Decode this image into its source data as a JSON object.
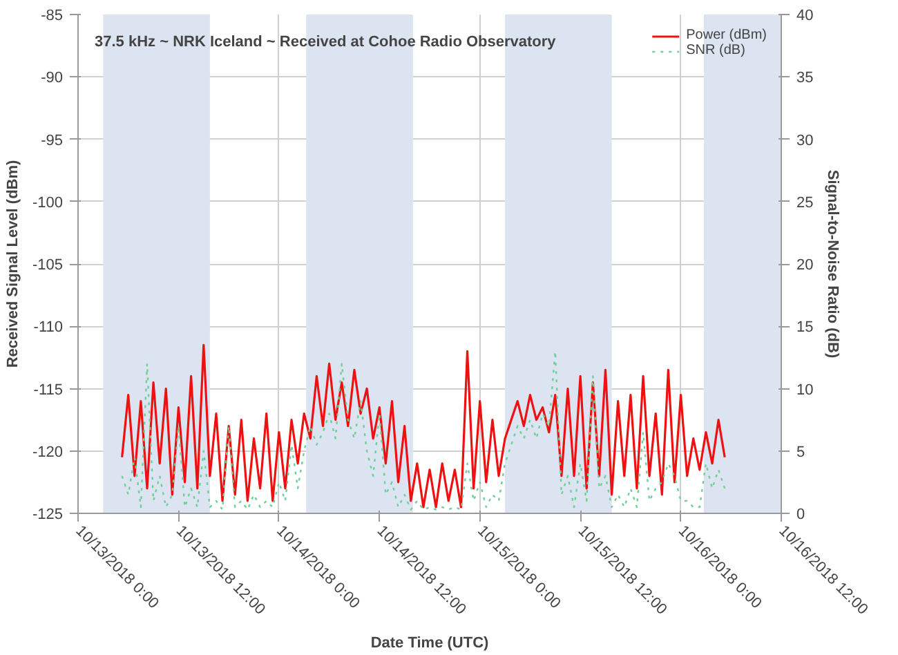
{
  "chart_data": {
    "type": "line",
    "title": "37.5 kHz ~ NRK Iceland ~ Received at Cohoe Radio Observatory",
    "xlabel": "Date Time (UTC)",
    "ylabel": "Received Signal Level (dBm)",
    "y2label": "Signal-to-Noise Ratio (dB)",
    "x": [
      "2018-10-13T05:15",
      "2018-10-13T06:00",
      "2018-10-13T06:45",
      "2018-10-13T07:30",
      "2018-10-13T08:15",
      "2018-10-13T09:00",
      "2018-10-13T09:45",
      "2018-10-13T10:30",
      "2018-10-13T11:15",
      "2018-10-13T12:00",
      "2018-10-13T12:45",
      "2018-10-13T13:30",
      "2018-10-13T14:15",
      "2018-10-13T15:00",
      "2018-10-13T15:45",
      "2018-10-13T16:30",
      "2018-10-13T17:15",
      "2018-10-13T18:00",
      "2018-10-13T18:45",
      "2018-10-13T19:30",
      "2018-10-13T20:15",
      "2018-10-13T21:00",
      "2018-10-13T21:45",
      "2018-10-13T22:30",
      "2018-10-13T23:15",
      "2018-10-14T00:00",
      "2018-10-14T00:45",
      "2018-10-14T01:30",
      "2018-10-14T02:15",
      "2018-10-14T03:00",
      "2018-10-14T03:45",
      "2018-10-14T04:30",
      "2018-10-14T05:15",
      "2018-10-14T06:00",
      "2018-10-14T06:45",
      "2018-10-14T07:30",
      "2018-10-14T08:15",
      "2018-10-14T09:00",
      "2018-10-14T09:45",
      "2018-10-14T10:30",
      "2018-10-14T11:15",
      "2018-10-14T12:00",
      "2018-10-14T12:45",
      "2018-10-14T13:30",
      "2018-10-14T14:15",
      "2018-10-14T15:00",
      "2018-10-14T15:45",
      "2018-10-14T16:30",
      "2018-10-14T17:15",
      "2018-10-14T18:00",
      "2018-10-14T18:45",
      "2018-10-14T19:30",
      "2018-10-14T20:15",
      "2018-10-14T21:00",
      "2018-10-14T21:45",
      "2018-10-14T22:30",
      "2018-10-14T23:15",
      "2018-10-15T00:00",
      "2018-10-15T00:45",
      "2018-10-15T01:30",
      "2018-10-15T02:15",
      "2018-10-15T03:00",
      "2018-10-15T03:45",
      "2018-10-15T04:30",
      "2018-10-15T05:15",
      "2018-10-15T06:00",
      "2018-10-15T06:45",
      "2018-10-15T07:30",
      "2018-10-15T08:15",
      "2018-10-15T09:00",
      "2018-10-15T09:45",
      "2018-10-15T10:30",
      "2018-10-15T11:15",
      "2018-10-15T12:00",
      "2018-10-15T12:45",
      "2018-10-15T13:30",
      "2018-10-15T14:15",
      "2018-10-15T15:00",
      "2018-10-15T15:45",
      "2018-10-15T16:30",
      "2018-10-15T17:15",
      "2018-10-15T18:00",
      "2018-10-15T18:45",
      "2018-10-15T19:30",
      "2018-10-15T20:15",
      "2018-10-15T21:00",
      "2018-10-15T21:45",
      "2018-10-15T22:30",
      "2018-10-15T23:15",
      "2018-10-16T00:00",
      "2018-10-16T00:45",
      "2018-10-16T01:30",
      "2018-10-16T02:15",
      "2018-10-16T03:00",
      "2018-10-16T03:45",
      "2018-10-16T04:30",
      "2018-10-16T05:15"
    ],
    "series": [
      {
        "name": "Power (dBm)",
        "color": "#ee1111",
        "line_style": "solid",
        "values": [
          -120.5,
          -115.5,
          -122,
          -116,
          -123,
          -114.5,
          -121,
          -115,
          -123.5,
          -116.5,
          -122.5,
          -114,
          -123,
          -111.5,
          -122,
          -117,
          -124,
          -118,
          -123.5,
          -117.5,
          -124,
          -119,
          -123,
          -117,
          -124,
          -118.5,
          -123,
          -117.5,
          -121,
          -117,
          -119,
          -114,
          -118,
          -113,
          -117.5,
          -114.5,
          -118,
          -113.5,
          -117,
          -115,
          -119,
          -116.5,
          -121,
          -116,
          -122.5,
          -118,
          -124,
          -121,
          -124.5,
          -121.5,
          -124.5,
          -121,
          -124,
          -121.5,
          -124.5,
          -112,
          -123,
          -116,
          -122.5,
          -117.5,
          -122,
          -119,
          -117.5,
          -116,
          -118,
          -115.5,
          -117.5,
          -116.5,
          -118.5,
          -115.5,
          -122,
          -115,
          -122,
          -114,
          -123,
          -114.5,
          -122,
          -113.5,
          -123.5,
          -116,
          -122,
          -115.5,
          -123,
          -114,
          -122,
          -117,
          -123.5,
          -113.5,
          -122.5,
          -115.5,
          -122,
          -119,
          -121.5,
          -118.5,
          -121,
          -117.5,
          -120.5
        ]
      },
      {
        "name": "SNR (dB)",
        "color": "#6fcf97",
        "line_style": "dotted",
        "axis": "y2",
        "values": [
          3,
          1.5,
          4.5,
          0.5,
          12,
          1,
          3,
          0.5,
          1.5,
          7,
          0.5,
          2,
          0.5,
          5,
          0.5,
          1,
          0.3,
          7,
          0.5,
          1,
          0.3,
          1.5,
          0.5,
          1,
          0.5,
          2.5,
          1,
          5.5,
          2,
          5,
          7,
          5.5,
          6.5,
          8,
          6,
          12,
          7.5,
          6,
          9,
          5,
          3,
          8,
          1.5,
          2.5,
          0.5,
          1.5,
          0.3,
          1,
          0.3,
          0.5,
          0.3,
          0.5,
          0.3,
          0.5,
          0.3,
          4,
          1,
          2.5,
          0.5,
          1.5,
          1,
          4,
          5.5,
          7,
          6,
          7.5,
          6,
          8,
          7,
          13,
          1.5,
          3,
          0.5,
          4,
          1,
          11,
          2,
          3,
          0.5,
          1.5,
          0.5,
          2,
          0.5,
          6.5,
          1,
          2,
          2.5,
          4,
          3,
          1,
          1,
          0.5,
          0.5,
          4,
          2,
          3.5,
          2
        ]
      }
    ],
    "xlim": [
      "2018-10-13T00:00",
      "2018-10-16T12:00"
    ],
    "xticks": [
      {
        "value": "2018-10-13T00:00",
        "label": "10/13/2018 0:00"
      },
      {
        "value": "2018-10-13T12:00",
        "label": "10/13/2018 12:00"
      },
      {
        "value": "2018-10-14T00:00",
        "label": "10/14/2018 0:00"
      },
      {
        "value": "2018-10-14T12:00",
        "label": "10/14/2018 12:00"
      },
      {
        "value": "2018-10-15T00:00",
        "label": "10/15/2018 0:00"
      },
      {
        "value": "2018-10-15T12:00",
        "label": "10/15/2018 12:00"
      },
      {
        "value": "2018-10-16T00:00",
        "label": "10/16/2018 0:00"
      },
      {
        "value": "2018-10-16T12:00",
        "label": "10/16/2018 12:00"
      }
    ],
    "ylim": [
      -125,
      -85
    ],
    "yticks": [
      -125,
      -120,
      -115,
      -110,
      -105,
      -100,
      -95,
      -90,
      -85
    ],
    "y2lim": [
      0,
      40
    ],
    "y2ticks": [
      0,
      5,
      10,
      15,
      20,
      25,
      30,
      35,
      40
    ],
    "bands": [
      {
        "axis": "x",
        "from": "2018-10-13T03:00",
        "to": "2018-10-13T15:45",
        "color": "#dbe4f0"
      },
      {
        "axis": "x",
        "from": "2018-10-14T03:15",
        "to": "2018-10-14T16:00",
        "color": "#dbe4f0"
      },
      {
        "axis": "x",
        "from": "2018-10-15T03:00",
        "to": "2018-10-15T15:45",
        "color": "#dbe4f0"
      },
      {
        "axis": "x",
        "from": "2018-10-16T02:45",
        "to": "2018-10-16T12:00",
        "color": "#dbe4f0"
      }
    ],
    "grid": true,
    "legend": "top right",
    "marker": "none"
  }
}
